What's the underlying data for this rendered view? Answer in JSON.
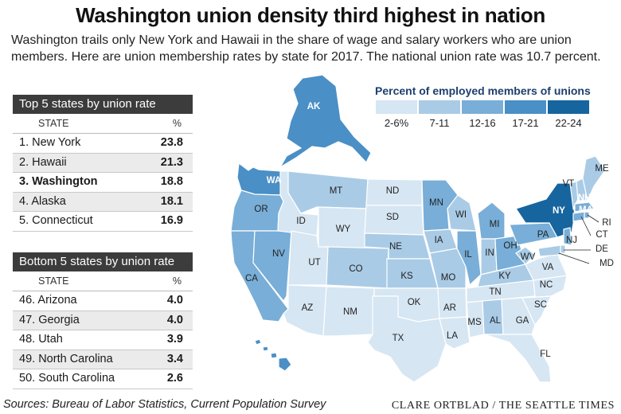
{
  "title": "Washington union density third highest in nation",
  "intro": "Washington trails only New York and Hawaii in the share of wage and salary workers who are union members. Here are union membership rates by state for 2017. The national union rate was 10.7 percent.",
  "top_table": {
    "heading": "Top 5 states by union rate",
    "col_state": "STATE",
    "col_pct": "%",
    "rows": [
      {
        "rank": "1.",
        "state": "New York",
        "value": "23.8"
      },
      {
        "rank": "2.",
        "state": "Hawaii",
        "value": "21.3"
      },
      {
        "rank": "3.",
        "state": "Washington",
        "value": "18.8"
      },
      {
        "rank": "4.",
        "state": "Alaska",
        "value": "18.1"
      },
      {
        "rank": "5.",
        "state": "Connecticut",
        "value": "16.9"
      }
    ]
  },
  "bottom_table": {
    "heading": "Bottom 5 states by union rate",
    "col_state": "STATE",
    "col_pct": "%",
    "rows": [
      {
        "rank": "46.",
        "state": "Arizona",
        "value": "4.0"
      },
      {
        "rank": "47.",
        "state": "Georgia",
        "value": "4.0"
      },
      {
        "rank": "48.",
        "state": "Utah",
        "value": "3.9"
      },
      {
        "rank": "49.",
        "state": "North Carolina",
        "value": "3.4"
      },
      {
        "rank": "50.",
        "state": "South Carolina",
        "value": "2.6"
      }
    ]
  },
  "legend": {
    "title": "Percent of employed members of unions",
    "bins": [
      {
        "label": "2-6%",
        "color": "#d6e6f3"
      },
      {
        "label": "7-11",
        "color": "#a9cbe6"
      },
      {
        "label": "12-16",
        "color": "#78aed7"
      },
      {
        "label": "17-21",
        "color": "#4a8fc6"
      },
      {
        "label": "22-24",
        "color": "#16659f"
      }
    ]
  },
  "states": [
    {
      "abbr": "AK",
      "bin": 3
    },
    {
      "abbr": "HI",
      "bin": 3
    },
    {
      "abbr": "WA",
      "bin": 3
    },
    {
      "abbr": "OR",
      "bin": 2
    },
    {
      "abbr": "CA",
      "bin": 2
    },
    {
      "abbr": "NV",
      "bin": 2
    },
    {
      "abbr": "ID",
      "bin": 0
    },
    {
      "abbr": "MT",
      "bin": 1
    },
    {
      "abbr": "WY",
      "bin": 0
    },
    {
      "abbr": "UT",
      "bin": 0
    },
    {
      "abbr": "CO",
      "bin": 1
    },
    {
      "abbr": "AZ",
      "bin": 0
    },
    {
      "abbr": "NM",
      "bin": 0
    },
    {
      "abbr": "ND",
      "bin": 0
    },
    {
      "abbr": "SD",
      "bin": 0
    },
    {
      "abbr": "NE",
      "bin": 1
    },
    {
      "abbr": "KS",
      "bin": 1
    },
    {
      "abbr": "OK",
      "bin": 0
    },
    {
      "abbr": "TX",
      "bin": 0
    },
    {
      "abbr": "MN",
      "bin": 2
    },
    {
      "abbr": "IA",
      "bin": 1
    },
    {
      "abbr": "MO",
      "bin": 1
    },
    {
      "abbr": "AR",
      "bin": 0
    },
    {
      "abbr": "LA",
      "bin": 0
    },
    {
      "abbr": "WI",
      "bin": 1
    },
    {
      "abbr": "IL",
      "bin": 2
    },
    {
      "abbr": "MI",
      "bin": 2
    },
    {
      "abbr": "IN",
      "bin": 1
    },
    {
      "abbr": "OH",
      "bin": 2
    },
    {
      "abbr": "KY",
      "bin": 1
    },
    {
      "abbr": "TN",
      "bin": 0
    },
    {
      "abbr": "MS",
      "bin": 0
    },
    {
      "abbr": "AL",
      "bin": 1
    },
    {
      "abbr": "GA",
      "bin": 0
    },
    {
      "abbr": "FL",
      "bin": 0
    },
    {
      "abbr": "SC",
      "bin": 0
    },
    {
      "abbr": "NC",
      "bin": 0
    },
    {
      "abbr": "VA",
      "bin": 0
    },
    {
      "abbr": "WV",
      "bin": 1
    },
    {
      "abbr": "PA",
      "bin": 2
    },
    {
      "abbr": "NY",
      "bin": 4
    },
    {
      "abbr": "VT",
      "bin": 1
    },
    {
      "abbr": "NH",
      "bin": 1
    },
    {
      "abbr": "ME",
      "bin": 1
    },
    {
      "abbr": "MA",
      "bin": 2
    },
    {
      "abbr": "RI",
      "bin": 2
    },
    {
      "abbr": "CT",
      "bin": 2
    },
    {
      "abbr": "NJ",
      "bin": 2
    },
    {
      "abbr": "DE",
      "bin": 1
    },
    {
      "abbr": "MD",
      "bin": 1
    }
  ],
  "source": "Sources: Bureau of Labor Statistics, Current Population Survey",
  "credit": "CLARE ORTBLAD / THE SEATTLE TIMES"
}
